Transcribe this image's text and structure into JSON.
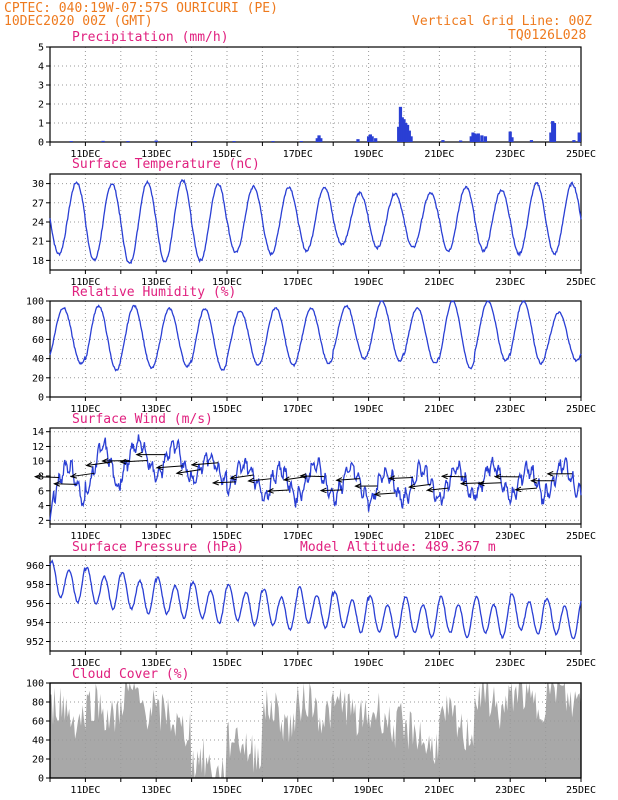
{
  "header": {
    "line1_left": "CPTEC:   040:19W-07:57S   OURICURI (PE)",
    "line2_left": "10DEC2020 00Z (GMT)",
    "line1_right": "Vertical Grid Line: 00Z",
    "line2_right": "TQ0126L028"
  },
  "colors": {
    "header": "#ee7a1e",
    "panel_title": "#e0207f",
    "series_line": "#2a3fd4",
    "precip_bar": "#2a3fd4",
    "cloud_fill": "#a8a8a8",
    "wind_arrow": "#000000",
    "grid": "#9a9a9a"
  },
  "x_axis": {
    "start": "10DEC2020 00Z",
    "end": "25DEC2020 00Z",
    "tick_labels": [
      "11DEC",
      "13DEC",
      "15DEC",
      "17DEC",
      "19DEC",
      "21DEC",
      "23DEC",
      "25DEC"
    ],
    "tick_days": [
      1,
      3,
      5,
      7,
      9,
      11,
      13,
      15
    ]
  },
  "chart_data": [
    {
      "type": "bar",
      "title": "Precipitation  (mm/h)",
      "ylim": [
        0,
        5
      ],
      "yticks": [
        0,
        1,
        2,
        3,
        4,
        5
      ],
      "grid": true,
      "x_unit": "days after 10DEC2020 00Z (data resolution approx.)",
      "events": [
        {
          "x": 0.6,
          "value": 0.05
        },
        {
          "x": 1.5,
          "value": 0.06
        },
        {
          "x": 2.2,
          "value": 0.05
        },
        {
          "x": 3.0,
          "value": 0.08
        },
        {
          "x": 4.1,
          "value": 0.05
        },
        {
          "x": 5.2,
          "value": 0.05
        },
        {
          "x": 6.3,
          "value": 0.05
        },
        {
          "x": 7.1,
          "value": 0.05
        },
        {
          "x": 7.55,
          "value": 0.2
        },
        {
          "x": 7.6,
          "value": 0.35
        },
        {
          "x": 7.65,
          "value": 0.2
        },
        {
          "x": 8.7,
          "value": 0.15
        },
        {
          "x": 9.0,
          "value": 0.3
        },
        {
          "x": 9.05,
          "value": 0.4
        },
        {
          "x": 9.1,
          "value": 0.3
        },
        {
          "x": 9.2,
          "value": 0.2
        },
        {
          "x": 9.85,
          "value": 0.8
        },
        {
          "x": 9.9,
          "value": 1.85
        },
        {
          "x": 9.95,
          "value": 1.3
        },
        {
          "x": 10.0,
          "value": 1.2
        },
        {
          "x": 10.05,
          "value": 1.0
        },
        {
          "x": 10.1,
          "value": 0.9
        },
        {
          "x": 10.15,
          "value": 0.6
        },
        {
          "x": 10.2,
          "value": 0.3
        },
        {
          "x": 11.1,
          "value": 0.1
        },
        {
          "x": 11.6,
          "value": 0.08
        },
        {
          "x": 11.9,
          "value": 0.3
        },
        {
          "x": 11.95,
          "value": 0.5
        },
        {
          "x": 12.0,
          "value": 0.45
        },
        {
          "x": 12.05,
          "value": 0.4
        },
        {
          "x": 12.1,
          "value": 0.45
        },
        {
          "x": 12.2,
          "value": 0.35
        },
        {
          "x": 12.3,
          "value": 0.3
        },
        {
          "x": 13.0,
          "value": 0.55
        },
        {
          "x": 13.05,
          "value": 0.25
        },
        {
          "x": 13.6,
          "value": 0.1
        },
        {
          "x": 14.15,
          "value": 0.5
        },
        {
          "x": 14.2,
          "value": 1.1
        },
        {
          "x": 14.25,
          "value": 1.0
        },
        {
          "x": 14.8,
          "value": 0.1
        },
        {
          "x": 14.95,
          "value": 0.5
        }
      ]
    },
    {
      "type": "line",
      "title": "Surface Temperature  (nC)",
      "ylim": [
        16.5,
        31.5
      ],
      "yticks": [
        18,
        21,
        24,
        27,
        30
      ],
      "grid": true,
      "model": "diurnal cycle",
      "daily_max": [
        30.2,
        30.0,
        30.3,
        30.5,
        30.0,
        29.5,
        29.5,
        29.5,
        28.5,
        28.5,
        28.5,
        29.5,
        29.0,
        30.0,
        30.0
      ],
      "daily_min": [
        19.0,
        18.0,
        17.5,
        17.8,
        18.0,
        19.2,
        19.0,
        19.5,
        20.5,
        20.0,
        20.0,
        19.5,
        19.5,
        19.0,
        19.0
      ],
      "max_hour_utc": 18,
      "min_hour_utc": 9
    },
    {
      "type": "line",
      "title": "Relative Humidity  (%)",
      "ylim": [
        0,
        100
      ],
      "yticks": [
        0,
        20,
        40,
        60,
        80,
        100
      ],
      "grid": true,
      "model": "diurnal cycle",
      "daily_max": [
        93,
        95,
        95,
        92,
        92,
        90,
        93,
        92,
        95,
        100,
        93,
        100,
        100,
        100,
        88
      ],
      "daily_min": [
        35,
        28,
        30,
        32,
        28,
        33,
        33,
        35,
        40,
        38,
        35,
        30,
        38,
        35,
        38
      ],
      "max_hour_utc": 9,
      "min_hour_utc": 18
    },
    {
      "type": "line",
      "title": "Surface Wind  (m/s)",
      "ylim": [
        1.5,
        14.5
      ],
      "yticks": [
        2,
        4,
        6,
        8,
        10,
        12,
        14
      ],
      "grid": true,
      "model": "diurnal cycle",
      "daily_mean": [
        7.0,
        9.0,
        10.5,
        10.0,
        9.0,
        8.0,
        7.0,
        7.5,
        7.0,
        6.5,
        7.0,
        7.0,
        7.5,
        7.0,
        7.5
      ],
      "daily_amplitude": [
        2.5,
        3.0,
        2.0,
        2.0,
        1.5,
        1.5,
        2.0,
        2.0,
        2.0,
        2.0,
        2.0,
        2.0,
        2.0,
        2.0,
        2.0
      ],
      "wind_arrows_note": "wind vectors plotted every 6 h along the speed curve; direction approx. from east-southeast",
      "wind_direction_deg": 100
    },
    {
      "type": "line",
      "title": "Surface Pressure  (hPa)",
      "annotation": "Model Altitude:  489.367  m",
      "ylim": [
        951,
        961
      ],
      "yticks": [
        952,
        954,
        956,
        958,
        960
      ],
      "grid": true,
      "model": "semidiurnal cycle",
      "daily_mean": [
        958.2,
        957.5,
        957.0,
        956.5,
        956.0,
        955.8,
        955.3,
        955.5,
        955.0,
        954.5,
        954.5,
        954.5,
        954.5,
        954.8,
        954.3
      ],
      "semidiurnal_amplitude": 1.8
    },
    {
      "type": "area",
      "title": "Cloud Cover  (%)",
      "ylim": [
        0,
        100
      ],
      "yticks": [
        0,
        20,
        40,
        60,
        80,
        100
      ],
      "grid": true,
      "daily_mean": [
        70,
        72,
        82,
        60,
        12,
        35,
        65,
        75,
        70,
        62,
        42,
        55,
        80,
        85,
        88
      ]
    }
  ]
}
